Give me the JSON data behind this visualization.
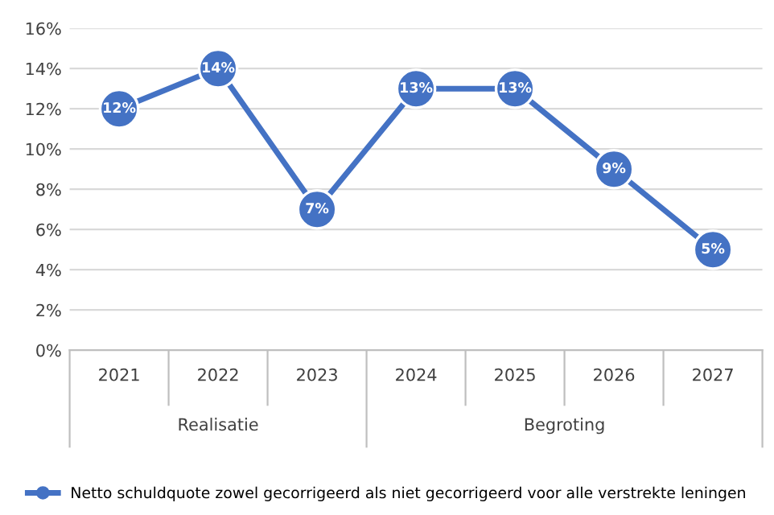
{
  "chart_data": {
    "type": "line",
    "categories": [
      "2021",
      "2022",
      "2023",
      "2024",
      "2025",
      "2026",
      "2027"
    ],
    "series": [
      {
        "name": "Netto schuldquote zowel gecorrigeerd als niet gecorrigeerd voor alle verstrekte leningen",
        "color": "#4472c4",
        "values": [
          12,
          14,
          7,
          13,
          13,
          9,
          5
        ],
        "value_labels": [
          "12%",
          "14%",
          "7%",
          "13%",
          "13%",
          "9%",
          "5%"
        ]
      }
    ],
    "ylim": [
      0,
      16
    ],
    "yticks": [
      {
        "value": 0,
        "label": "0%"
      },
      {
        "value": 2,
        "label": "2%"
      },
      {
        "value": 4,
        "label": "4%"
      },
      {
        "value": 6,
        "label": "6%"
      },
      {
        "value": 8,
        "label": "8%"
      },
      {
        "value": 10,
        "label": "10%"
      },
      {
        "value": 12,
        "label": "12%"
      },
      {
        "value": 14,
        "label": "14%"
      },
      {
        "value": 16,
        "label": "16%"
      }
    ],
    "annotations": [
      "Realisatie",
      "Begroting"
    ],
    "grid": "y",
    "legend": "bottom",
    "marker": "circle",
    "line_style": "solid"
  }
}
